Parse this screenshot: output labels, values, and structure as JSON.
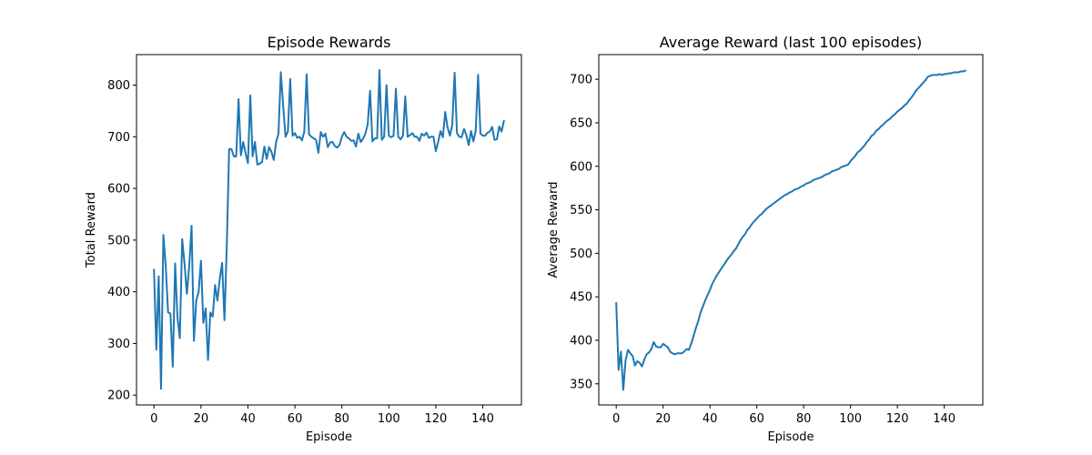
{
  "figure_background": "#ffffff",
  "chart_data": [
    {
      "type": "line",
      "title": "Episode Rewards",
      "xlabel": "Episode",
      "ylabel": "Total Reward",
      "xlim": [
        -7.45,
        156.45
      ],
      "ylim": [
        181,
        859
      ],
      "xticks": [
        0,
        20,
        40,
        60,
        80,
        100,
        120,
        140
      ],
      "yticks": [
        200,
        300,
        400,
        500,
        600,
        700,
        800
      ],
      "grid": false,
      "color": "#1f77b4",
      "series": [
        {
          "name": "Total Reward",
          "x": [
            0,
            1,
            2,
            3,
            4,
            5,
            6,
            7,
            8,
            9,
            10,
            11,
            12,
            13,
            14,
            15,
            16,
            17,
            18,
            19,
            20,
            21,
            22,
            23,
            24,
            25,
            26,
            27,
            28,
            29,
            30,
            31,
            32,
            33,
            34,
            35,
            36,
            37,
            38,
            39,
            40,
            41,
            42,
            43,
            44,
            45,
            46,
            47,
            48,
            49,
            50,
            51,
            52,
            53,
            54,
            55,
            56,
            57,
            58,
            59,
            60,
            61,
            62,
            63,
            64,
            65,
            66,
            67,
            68,
            69,
            70,
            71,
            72,
            73,
            74,
            75,
            76,
            77,
            78,
            79,
            80,
            81,
            82,
            83,
            84,
            85,
            86,
            87,
            88,
            89,
            90,
            91,
            92,
            93,
            94,
            95,
            96,
            97,
            98,
            99,
            100,
            101,
            102,
            103,
            104,
            105,
            106,
            107,
            108,
            109,
            110,
            111,
            112,
            113,
            114,
            115,
            116,
            117,
            118,
            119,
            120,
            121,
            122,
            123,
            124,
            125,
            126,
            127,
            128,
            129,
            130,
            131,
            132,
            133,
            134,
            135,
            136,
            137,
            138,
            139,
            140,
            141,
            142,
            143,
            144,
            145,
            146,
            147,
            148,
            149
          ],
          "y": [
            443,
            288,
            430,
            212,
            510,
            450,
            360,
            358,
            255,
            455,
            350,
            310,
            502,
            455,
            396,
            450,
            528,
            305,
            383,
            400,
            460,
            340,
            368,
            268,
            360,
            352,
            413,
            383,
            425,
            456,
            345,
            490,
            676,
            676,
            662,
            662,
            773,
            664,
            690,
            668,
            649,
            780,
            662,
            690,
            646,
            648,
            651,
            681,
            657,
            680,
            671,
            655,
            690,
            706,
            825,
            760,
            700,
            710,
            812,
            702,
            707,
            698,
            700,
            693,
            710,
            821,
            705,
            700,
            697,
            694,
            669,
            709,
            700,
            706,
            680,
            689,
            690,
            682,
            679,
            684,
            700,
            709,
            700,
            697,
            692,
            693,
            681,
            706,
            690,
            696,
            706,
            724,
            789,
            691,
            697,
            697,
            829,
            694,
            700,
            800,
            702,
            699,
            702,
            793,
            700,
            695,
            702,
            778,
            700,
            703,
            707,
            700,
            700,
            692,
            706,
            702,
            708,
            698,
            700,
            700,
            672,
            690,
            711,
            699,
            748,
            718,
            702,
            723,
            824,
            707,
            700,
            699,
            715,
            703,
            684,
            711,
            691,
            712,
            820,
            706,
            702,
            702,
            708,
            710,
            719,
            694,
            695,
            720,
            710,
            731
          ]
        }
      ]
    },
    {
      "type": "line",
      "title": "Average Reward (last 100 episodes)",
      "xlabel": "Episode",
      "ylabel": "Average Reward",
      "xlim": [
        -7.45,
        156.45
      ],
      "ylim": [
        325.7,
        728.4
      ],
      "xticks": [
        0,
        20,
        40,
        60,
        80,
        100,
        120,
        140
      ],
      "yticks": [
        350,
        400,
        450,
        500,
        550,
        600,
        650,
        700
      ],
      "grid": false,
      "color": "#1f77b4",
      "series": [
        {
          "name": "Average Reward",
          "x": [
            0,
            1,
            2,
            3,
            4,
            5,
            6,
            7,
            8,
            9,
            10,
            11,
            12,
            13,
            14,
            15,
            16,
            17,
            18,
            19,
            20,
            21,
            22,
            23,
            24,
            25,
            26,
            27,
            28,
            29,
            30,
            31,
            32,
            33,
            34,
            35,
            36,
            37,
            38,
            39,
            40,
            41,
            42,
            43,
            44,
            45,
            46,
            47,
            48,
            49,
            50,
            51,
            52,
            53,
            54,
            55,
            56,
            57,
            58,
            59,
            60,
            61,
            62,
            63,
            64,
            65,
            66,
            67,
            68,
            69,
            70,
            71,
            72,
            73,
            74,
            75,
            76,
            77,
            78,
            79,
            80,
            81,
            82,
            83,
            84,
            85,
            86,
            87,
            88,
            89,
            90,
            91,
            92,
            93,
            94,
            95,
            96,
            97,
            98,
            99,
            100,
            101,
            102,
            103,
            104,
            105,
            106,
            107,
            108,
            109,
            110,
            111,
            112,
            113,
            114,
            115,
            116,
            117,
            118,
            119,
            120,
            121,
            122,
            123,
            124,
            125,
            126,
            127,
            128,
            129,
            130,
            131,
            132,
            133,
            134,
            135,
            136,
            137,
            138,
            139,
            140,
            141,
            142,
            143,
            144,
            145,
            146,
            147,
            148,
            149
          ],
          "y": [
            443,
            366,
            387,
            343,
            377,
            389,
            385,
            382,
            371,
            376,
            374,
            370,
            378,
            384,
            386,
            390,
            398,
            393,
            392,
            392,
            396,
            394,
            392,
            387,
            385,
            384,
            385,
            385,
            385,
            387,
            390,
            389,
            396,
            405,
            414,
            422,
            432,
            439,
            446,
            452,
            458,
            465,
            470,
            475,
            479,
            483,
            487,
            491,
            495,
            498,
            502,
            505,
            510,
            515,
            519,
            522,
            527,
            530,
            534,
            537,
            540,
            543,
            545,
            548,
            551,
            553,
            555,
            557,
            559,
            561,
            563,
            565,
            567,
            568,
            570,
            571,
            573,
            574,
            575,
            577,
            578,
            580,
            581,
            582,
            584,
            585,
            586,
            587,
            588,
            590,
            591,
            592,
            594,
            595,
            596,
            597,
            599,
            600,
            601,
            602,
            606,
            609,
            612,
            616,
            618,
            621,
            624,
            628,
            631,
            635,
            637,
            641,
            643,
            646,
            648,
            651,
            653,
            655,
            658,
            660,
            663,
            665,
            667,
            670,
            672,
            676,
            679,
            683,
            687,
            690,
            693,
            696,
            699,
            703,
            704,
            705,
            705,
            705,
            706,
            705,
            706,
            706,
            707,
            707,
            708,
            708,
            708,
            709,
            709,
            710
          ]
        }
      ]
    }
  ]
}
